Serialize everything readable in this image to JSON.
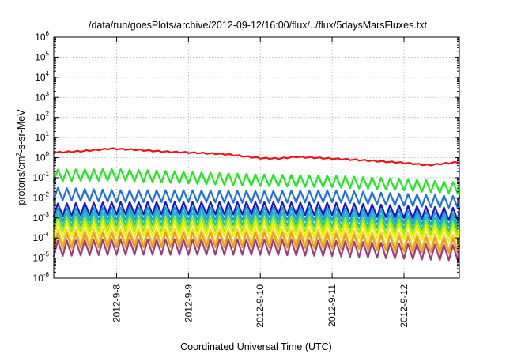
{
  "chart_data": {
    "type": "line",
    "title": "/data/run/goesPlots/archive/2012-09-12/16:00/flux/../flux/5daysMarsFluxes.txt",
    "xlabel": "Coordinated Universal Time (UTC)",
    "ylabel": {
      "prefix": "protons/cm",
      "superscript": "2",
      "suffix": "-s-sr-MeV"
    },
    "x_range": [
      "2012-09-07T03:00:00Z",
      "2012-09-12T18:30:00Z"
    ],
    "x_ticks": [
      {
        "label": "2012-9-8",
        "t": "2012-09-08T00:00:00Z"
      },
      {
        "label": "2012-9-9",
        "t": "2012-09-09T00:00:00Z"
      },
      {
        "label": "2012-9-10",
        "t": "2012-09-10T00:00:00Z"
      },
      {
        "label": "2012-9-11",
        "t": "2012-09-11T00:00:00Z"
      },
      {
        "label": "2012-9-12",
        "t": "2012-09-12T00:00:00Z"
      }
    ],
    "y_scale": "log",
    "ylim": [
      1e-06,
      1000000.0
    ],
    "y_ticks": [
      {
        "base": "10",
        "exp": "-6",
        "value": 1e-06
      },
      {
        "base": "10",
        "exp": "-5",
        "value": 1e-05
      },
      {
        "base": "10",
        "exp": "-4",
        "value": 0.0001
      },
      {
        "base": "10",
        "exp": "-3",
        "value": 0.001
      },
      {
        "base": "10",
        "exp": "-2",
        "value": 0.01
      },
      {
        "base": "10",
        "exp": "-1",
        "value": 0.1
      },
      {
        "base": "10",
        "exp": "0",
        "value": 1
      },
      {
        "base": "10",
        "exp": "1",
        "value": 10
      },
      {
        "base": "10",
        "exp": "2",
        "value": 100
      },
      {
        "base": "10",
        "exp": "3",
        "value": 1000
      },
      {
        "base": "10",
        "exp": "4",
        "value": 10000
      },
      {
        "base": "10",
        "exp": "5",
        "value": 100000
      },
      {
        "base": "10",
        "exp": "6",
        "value": 1000000
      }
    ],
    "grid": true,
    "series": [
      {
        "color": "#e8141a",
        "oscillation": "slight",
        "points": [
          [
            "2012-09-07T03:00:00Z",
            1.8
          ],
          [
            "2012-09-07T12:00:00Z",
            2.1
          ],
          [
            "2012-09-07T22:00:00Z",
            2.8
          ],
          [
            "2012-09-08T06:00:00Z",
            2.5
          ],
          [
            "2012-09-08T16:00:00Z",
            2.0
          ],
          [
            "2012-09-09T00:00:00Z",
            1.8
          ],
          [
            "2012-09-09T12:00:00Z",
            1.5
          ],
          [
            "2012-09-10T00:00:00Z",
            0.95
          ],
          [
            "2012-09-10T06:00:00Z",
            0.9
          ],
          [
            "2012-09-10T12:00:00Z",
            1.1
          ],
          [
            "2012-09-11T00:00:00Z",
            0.9
          ],
          [
            "2012-09-11T12:00:00Z",
            0.72
          ],
          [
            "2012-09-12T00:00:00Z",
            0.55
          ],
          [
            "2012-09-12T08:00:00Z",
            0.42
          ],
          [
            "2012-09-12T18:30:00Z",
            0.6
          ]
        ]
      },
      {
        "color": "#1ee81e",
        "oscillation": "sawtooth",
        "points": [
          [
            "2012-09-07T03:00:00Z",
            0.13
          ],
          [
            "2012-09-08T00:00:00Z",
            0.14
          ],
          [
            "2012-09-09T00:00:00Z",
            0.1
          ],
          [
            "2012-09-10T00:00:00Z",
            0.075
          ],
          [
            "2012-09-11T00:00:00Z",
            0.065
          ],
          [
            "2012-09-12T00:00:00Z",
            0.045
          ],
          [
            "2012-09-12T18:30:00Z",
            0.03
          ]
        ]
      },
      {
        "color": "#1e6ee8",
        "oscillation": "sawtooth",
        "points": [
          [
            "2012-09-07T03:00:00Z",
            0.016
          ],
          [
            "2012-09-08T00:00:00Z",
            0.012
          ],
          [
            "2012-09-09T00:00:00Z",
            0.012
          ],
          [
            "2012-09-10T00:00:00Z",
            0.011
          ],
          [
            "2012-09-11T00:00:00Z",
            0.012
          ],
          [
            "2012-09-12T00:00:00Z",
            0.008
          ],
          [
            "2012-09-12T18:30:00Z",
            0.006
          ]
        ]
      },
      {
        "color": "#1414d2",
        "oscillation": "sawtooth",
        "points": [
          [
            "2012-09-07T03:00:00Z",
            0.0025
          ],
          [
            "2012-09-08T00:00:00Z",
            0.003
          ],
          [
            "2012-09-09T00:00:00Z",
            0.003
          ],
          [
            "2012-09-10T00:00:00Z",
            0.003
          ],
          [
            "2012-09-11T00:00:00Z",
            0.0028
          ],
          [
            "2012-09-12T00:00:00Z",
            0.002
          ],
          [
            "2012-09-12T18:30:00Z",
            0.0015
          ]
        ]
      },
      {
        "color": "#1ea0d2",
        "oscillation": "sawtooth",
        "points": [
          [
            "2012-09-07T03:00:00Z",
            0.0014
          ],
          [
            "2012-09-08T00:00:00Z",
            0.0016
          ],
          [
            "2012-09-09T00:00:00Z",
            0.0016
          ],
          [
            "2012-09-10T00:00:00Z",
            0.0016
          ],
          [
            "2012-09-11T00:00:00Z",
            0.0015
          ],
          [
            "2012-09-12T00:00:00Z",
            0.0011
          ],
          [
            "2012-09-12T18:30:00Z",
            0.0008
          ]
        ]
      },
      {
        "color": "#1ec8a0",
        "oscillation": "sawtooth",
        "points": [
          [
            "2012-09-07T03:00:00Z",
            0.0008
          ],
          [
            "2012-09-08T00:00:00Z",
            0.0009
          ],
          [
            "2012-09-09T00:00:00Z",
            0.0009
          ],
          [
            "2012-09-10T00:00:00Z",
            0.0009
          ],
          [
            "2012-09-11T00:00:00Z",
            0.0008
          ],
          [
            "2012-09-12T00:00:00Z",
            0.0006
          ],
          [
            "2012-09-12T18:30:00Z",
            0.00045
          ]
        ]
      },
      {
        "color": "#a0e61e",
        "oscillation": "sawtooth",
        "points": [
          [
            "2012-09-07T03:00:00Z",
            0.00045
          ],
          [
            "2012-09-08T00:00:00Z",
            0.0005
          ],
          [
            "2012-09-09T00:00:00Z",
            0.0005
          ],
          [
            "2012-09-10T00:00:00Z",
            0.0005
          ],
          [
            "2012-09-11T00:00:00Z",
            0.00045
          ],
          [
            "2012-09-12T00:00:00Z",
            0.00035
          ],
          [
            "2012-09-12T18:30:00Z",
            0.00026
          ]
        ]
      },
      {
        "color": "#f0f000",
        "oscillation": "sawtooth",
        "points": [
          [
            "2012-09-07T03:00:00Z",
            0.00025
          ],
          [
            "2012-09-08T00:00:00Z",
            0.00028
          ],
          [
            "2012-09-09T00:00:00Z",
            0.00028
          ],
          [
            "2012-09-10T00:00:00Z",
            0.00028
          ],
          [
            "2012-09-11T00:00:00Z",
            0.00025
          ],
          [
            "2012-09-12T00:00:00Z",
            0.0002
          ],
          [
            "2012-09-12T18:30:00Z",
            0.00015
          ]
        ]
      },
      {
        "color": "#f0d23c",
        "oscillation": "sawtooth",
        "points": [
          [
            "2012-09-07T03:00:00Z",
            0.00011
          ],
          [
            "2012-09-08T00:00:00Z",
            0.00012
          ],
          [
            "2012-09-09T00:00:00Z",
            0.00012
          ],
          [
            "2012-09-10T00:00:00Z",
            0.00012
          ],
          [
            "2012-09-11T00:00:00Z",
            0.00011
          ],
          [
            "2012-09-12T00:00:00Z",
            8e-05
          ],
          [
            "2012-09-12T18:30:00Z",
            6e-05
          ]
        ]
      },
      {
        "color": "#e6a01e",
        "oscillation": "sawtooth",
        "points": [
          [
            "2012-09-07T03:00:00Z",
            7e-05
          ],
          [
            "2012-09-08T00:00:00Z",
            8e-05
          ],
          [
            "2012-09-09T00:00:00Z",
            8e-05
          ],
          [
            "2012-09-10T00:00:00Z",
            8e-05
          ],
          [
            "2012-09-11T00:00:00Z",
            7e-05
          ],
          [
            "2012-09-12T00:00:00Z",
            5e-05
          ],
          [
            "2012-09-12T18:30:00Z",
            4e-05
          ]
        ]
      },
      {
        "color": "#a03c78",
        "oscillation": "sawtooth",
        "points": [
          [
            "2012-09-07T03:00:00Z",
            3e-05
          ],
          [
            "2012-09-08T00:00:00Z",
            3.5e-05
          ],
          [
            "2012-09-09T00:00:00Z",
            3.5e-05
          ],
          [
            "2012-09-10T00:00:00Z",
            3.5e-05
          ],
          [
            "2012-09-11T00:00:00Z",
            3e-05
          ],
          [
            "2012-09-12T00:00:00Z",
            2.2e-05
          ],
          [
            "2012-09-12T18:30:00Z",
            1.8e-05
          ]
        ]
      }
    ]
  }
}
